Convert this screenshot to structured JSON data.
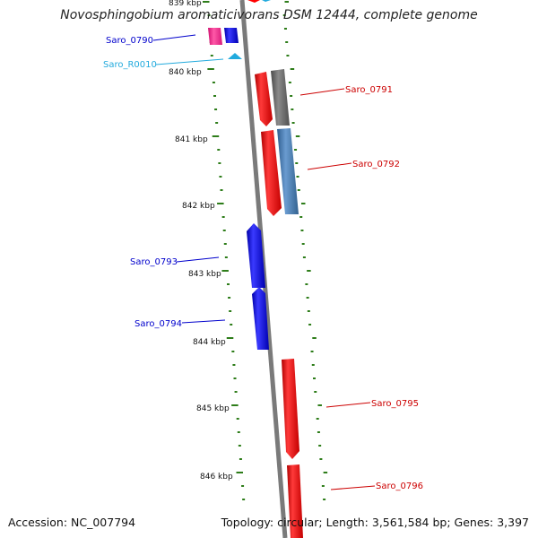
{
  "title": "Novosphingobium aromaticivorans DSM 12444, complete genome",
  "footer": {
    "accession": "Accession: NC_007794",
    "summary": "Topology: circular; Length: 3,561,584 bp; Genes: 3,397"
  },
  "scale_labels": [
    "839 kbp",
    "840 kbp",
    "841 kbp",
    "842 kbp",
    "843 kbp",
    "844 kbp",
    "845 kbp",
    "846 kbp"
  ],
  "colors": {
    "backbone": "#7a7a7a",
    "tick": "#2e7d1a",
    "forward_gene": "#ff0000",
    "reverse_gene": "#0000ff",
    "pseudo_gene": "#666666",
    "steel_gene": "#4a7fb5",
    "magenta_gene": "#ff2d8f",
    "rna_gene": "#22aadd",
    "label_red": "#cc0000",
    "label_blue": "#0000cc",
    "label_cyan": "#22aadd"
  },
  "genes": [
    {
      "name": "Saro_0790",
      "label_color": "#0000cc"
    },
    {
      "name": "Saro_R0010",
      "label_color": "#22aadd"
    },
    {
      "name": "Saro_0791",
      "label_color": "#cc0000"
    },
    {
      "name": "Saro_0792",
      "label_color": "#cc0000"
    },
    {
      "name": "Saro_0793",
      "label_color": "#0000cc"
    },
    {
      "name": "Saro_0794",
      "label_color": "#0000cc"
    },
    {
      "name": "Saro_0795",
      "label_color": "#cc0000"
    },
    {
      "name": "Saro_0796",
      "label_color": "#cc0000"
    }
  ]
}
